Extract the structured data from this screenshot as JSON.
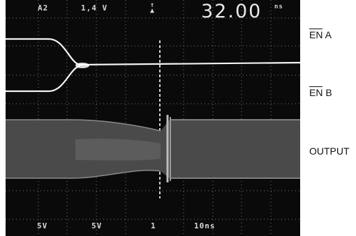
{
  "scope": {
    "top_readouts": {
      "channel": "A2",
      "trigger_level": "1,4 V",
      "trigger_slope_icon": "trigger-slope-icon",
      "timebase_value": "32.00",
      "timebase_unit": "ns"
    },
    "bottom_readouts": {
      "ch1_scale": "5V",
      "ch2_scale": "5V",
      "ch3_marker": "1",
      "time_scale": "10ns"
    }
  },
  "labels": {
    "en_a_overbar": "EN",
    "en_a_suffix": " A",
    "en_b_overbar": "EN",
    "en_b_suffix": " B",
    "output": "OUTPUT"
  }
}
